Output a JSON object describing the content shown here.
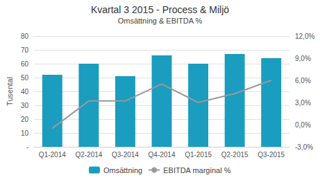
{
  "chart_data": {
    "type": "bar",
    "title": "Kvartal 3 2015 - Process & Miljö",
    "subtitle": "Omsättning & EBITDA %",
    "categories": [
      "Q1-2014",
      "Q2-2014",
      "Q3-2014",
      "Q4-2014",
      "Q1-2015",
      "Q2-2015",
      "Q3-2015"
    ],
    "series": [
      {
        "name": "Omsättning",
        "type": "bar",
        "color": "#1a9dbe",
        "values": [
          52,
          60,
          51,
          66,
          60,
          67,
          64
        ]
      },
      {
        "name": "EBITDA marginal %",
        "type": "line",
        "color": "#999999",
        "axis": "y2",
        "marker": "none",
        "values": [
          -0.5,
          3.2,
          3.2,
          5.5,
          3.0,
          4.2,
          6.0
        ]
      }
    ],
    "ylabel": "Tusental",
    "ylim": [
      0,
      80
    ],
    "yticks": [
      {
        "value": 0,
        "label": "-"
      },
      10,
      20,
      30,
      40,
      50,
      60,
      70,
      80
    ],
    "y2lim": [
      -3.0,
      12.0
    ],
    "y2ticks": [
      {
        "value": -3.0,
        "label": "-3,0%"
      },
      {
        "value": 0.0,
        "label": "0,0%"
      },
      {
        "value": 3.0,
        "label": "3,0%"
      },
      {
        "value": 6.0,
        "label": "6,0%"
      },
      {
        "value": 9.0,
        "label": "9,0%"
      },
      {
        "value": 12.0,
        "label": "12,0%"
      }
    ],
    "grid": true,
    "legend": "bottom"
  }
}
